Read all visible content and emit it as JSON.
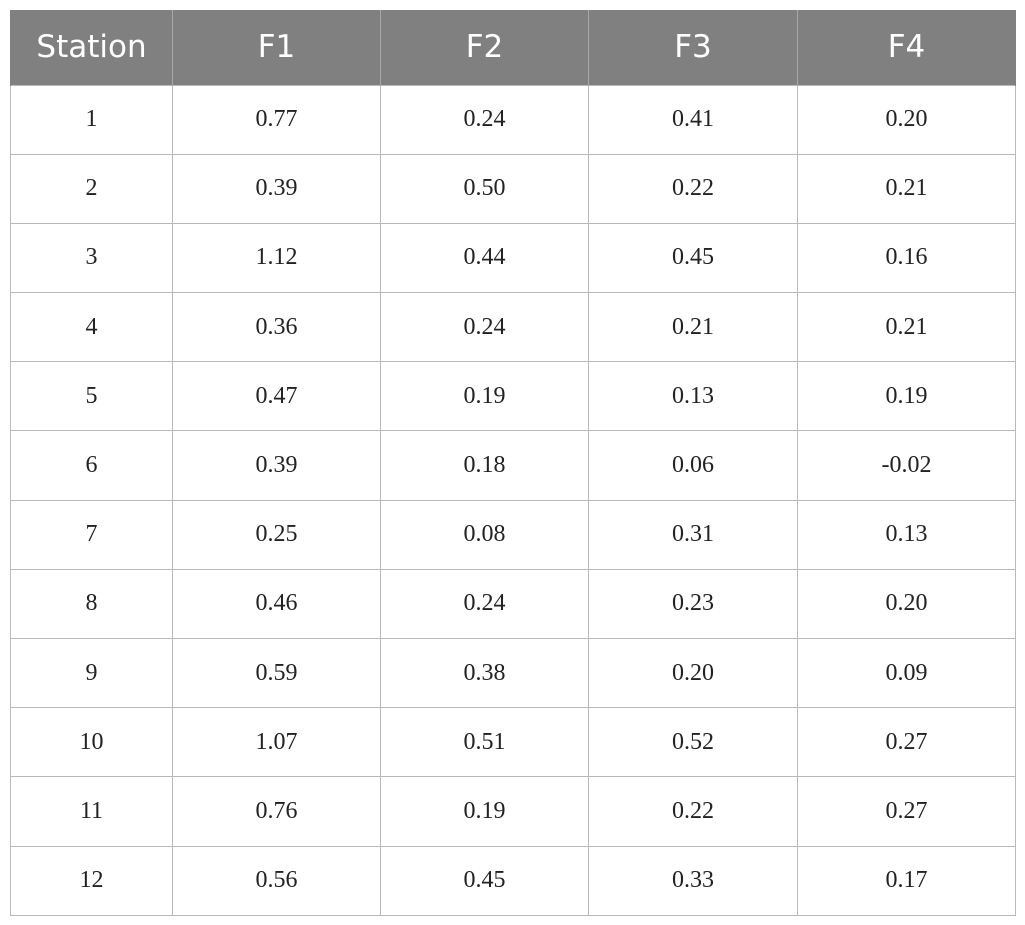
{
  "table": {
    "headers": [
      "Station",
      "F1",
      "F2",
      "F3",
      "F4"
    ],
    "rows": [
      [
        "1",
        "0.77",
        "0.24",
        "0.41",
        "0.20"
      ],
      [
        "2",
        "0.39",
        "0.50",
        "0.22",
        "0.21"
      ],
      [
        "3",
        "1.12",
        "0.44",
        "0.45",
        "0.16"
      ],
      [
        "4",
        "0.36",
        "0.24",
        "0.21",
        "0.21"
      ],
      [
        "5",
        "0.47",
        "0.19",
        "0.13",
        "0.19"
      ],
      [
        "6",
        "0.39",
        "0.18",
        "0.06",
        "-0.02"
      ],
      [
        "7",
        "0.25",
        "0.08",
        "0.31",
        "0.13"
      ],
      [
        "8",
        "0.46",
        "0.24",
        "0.23",
        "0.20"
      ],
      [
        "9",
        "0.59",
        "0.38",
        "0.20",
        "0.09"
      ],
      [
        "10",
        "1.07",
        "0.51",
        "0.52",
        "0.27"
      ],
      [
        "11",
        "0.76",
        "0.19",
        "0.22",
        "0.27"
      ],
      [
        "12",
        "0.56",
        "0.45",
        "0.33",
        "0.17"
      ]
    ],
    "colors": {
      "header_background": "#808080",
      "header_text": "#ffffff",
      "grid_lines": "#b9b9b9"
    }
  }
}
